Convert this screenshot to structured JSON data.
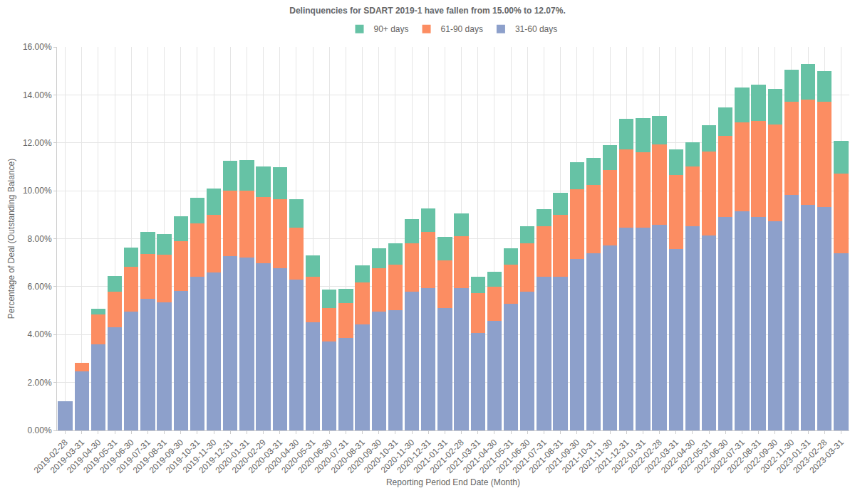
{
  "chart_data": {
    "type": "bar",
    "title": "Delinquencies for SDART 2019-1 have fallen from 15.00% to 12.07%.",
    "x_label": "Reporting Period End Date (Month)",
    "y_label": "Percentage of Deal (Outstanding Balance)",
    "stacked": true,
    "grid": true,
    "legend": "top",
    "categories": [
      "2019-02-28",
      "2019-03-31",
      "2019-04-30",
      "2019-05-31",
      "2019-06-30",
      "2019-07-31",
      "2019-08-31",
      "2019-09-30",
      "2019-10-31",
      "2019-11-30",
      "2019-12-31",
      "2020-01-31",
      "2020-02-29",
      "2020-03-31",
      "2020-04-30",
      "2020-05-31",
      "2020-06-30",
      "2020-07-31",
      "2020-08-31",
      "2020-09-30",
      "2020-10-31",
      "2020-11-30",
      "2020-12-31",
      "2021-01-31",
      "2021-02-28",
      "2021-03-31",
      "2021-04-30",
      "2021-05-31",
      "2021-06-30",
      "2021-07-31",
      "2021-08-31",
      "2021-09-30",
      "2021-10-31",
      "2021-11-30",
      "2021-12-31",
      "2022-01-31",
      "2022-02-28",
      "2022-03-31",
      "2022-04-30",
      "2022-05-31",
      "2022-06-30",
      "2022-07-31",
      "2022-08-31",
      "2022-09-30",
      "2022-11-30",
      "2023-01-31",
      "2023-02-28",
      "2023-03-31"
    ],
    "series": [
      {
        "name": "31-60 days",
        "color": "#8da0cb",
        "values": [
          1.22,
          2.45,
          3.58,
          4.3,
          4.97,
          5.48,
          5.35,
          5.83,
          6.42,
          6.6,
          7.28,
          7.22,
          6.98,
          6.78,
          6.3,
          4.52,
          3.72,
          3.87,
          4.43,
          4.97,
          5.03,
          5.8,
          5.95,
          5.12,
          5.95,
          4.07,
          4.58,
          5.28,
          5.8,
          6.4,
          6.42,
          7.15,
          7.4,
          7.72,
          8.47,
          8.47,
          8.57,
          7.58,
          8.52,
          8.13,
          8.92,
          9.15,
          8.9,
          8.72,
          9.82,
          9.4,
          9.33,
          7.4
        ]
      },
      {
        "name": "61-90 days",
        "color": "#fc8d62",
        "values": [
          0,
          0.38,
          1.25,
          1.5,
          1.85,
          1.87,
          1.97,
          2.07,
          2.23,
          2.38,
          2.72,
          2.78,
          2.77,
          2.88,
          2.17,
          1.88,
          1.4,
          1.45,
          1.75,
          1.8,
          1.9,
          2.02,
          2.32,
          1.98,
          2.15,
          1.65,
          1.43,
          1.65,
          2.0,
          2.12,
          2.57,
          2.9,
          2.83,
          3.15,
          3.27,
          3.15,
          3.35,
          3.07,
          2.48,
          3.5,
          3.38,
          3.7,
          4.02,
          4.05,
          3.88,
          4.4,
          4.37,
          3.33
        ]
      },
      {
        "name": "90+ days",
        "color": "#66c2a5",
        "values": [
          0,
          0,
          0.25,
          0.65,
          0.8,
          0.92,
          0.88,
          1.05,
          1.05,
          1.1,
          1.25,
          1.28,
          1.25,
          1.32,
          1.18,
          0.9,
          0.77,
          0.6,
          0.7,
          0.83,
          0.87,
          1.0,
          0.98,
          0.97,
          0.95,
          0.7,
          0.62,
          0.67,
          0.72,
          0.7,
          0.92,
          1.15,
          1.15,
          1.03,
          1.25,
          1.4,
          1.2,
          1.07,
          1.03,
          1.1,
          1.17,
          1.45,
          1.52,
          1.47,
          1.35,
          1.5,
          1.3,
          1.34
        ]
      }
    ],
    "ylim": [
      0,
      16
    ],
    "yticks": [
      {
        "value": 0,
        "label": "0.00%"
      },
      {
        "value": 2,
        "label": "2.00%"
      },
      {
        "value": 4,
        "label": "4.00%"
      },
      {
        "value": 6,
        "label": "6.00%"
      },
      {
        "value": 8,
        "label": "8.00%"
      },
      {
        "value": 10,
        "label": "10.00%"
      },
      {
        "value": 12,
        "label": "12.00%"
      },
      {
        "value": 14,
        "label": "14.00%"
      },
      {
        "value": 16,
        "label": "16.00%"
      }
    ]
  }
}
